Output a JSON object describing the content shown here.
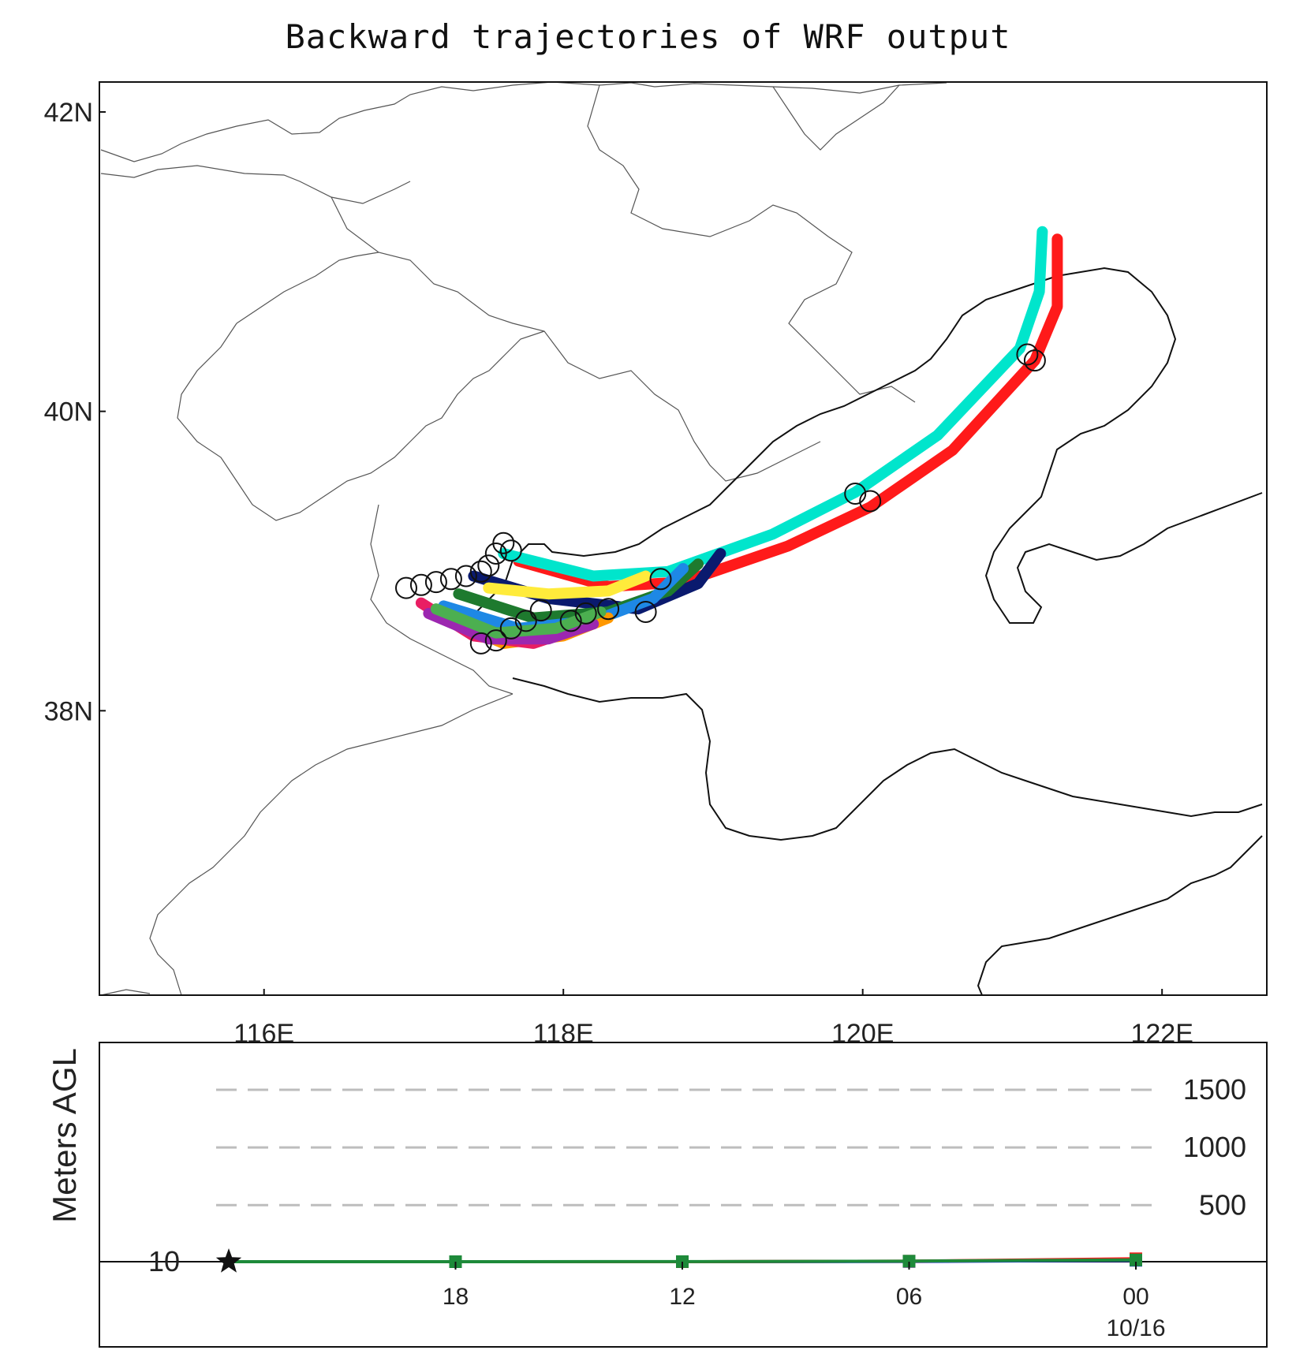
{
  "chart_data": [
    {
      "type": "scatter",
      "subtype": "trajectory-map",
      "title": "Backward trajectories of WRF output",
      "xlabel": "",
      "ylabel": "",
      "x_ticks": [
        116,
        118,
        120,
        122
      ],
      "x_tick_labels": [
        "116E",
        "118E",
        "120E",
        "122E"
      ],
      "y_ticks": [
        38,
        40,
        42
      ],
      "y_tick_labels": [
        "38N",
        "40N",
        "42N"
      ],
      "xlim": [
        114.9,
        122.7
      ],
      "ylim": [
        36.1,
        42.2
      ],
      "grid": false,
      "series": [
        {
          "color": "#ff1a1a",
          "x": [
            117.7,
            118.3,
            118.8,
            119.5,
            120.05,
            120.6,
            121.15,
            121.3,
            121.3
          ],
          "y": [
            39.0,
            38.83,
            38.86,
            39.1,
            39.36,
            39.74,
            40.34,
            40.7,
            41.15
          ]
        },
        {
          "color": "#00e5cc",
          "x": [
            117.6,
            118.2,
            118.7,
            119.4,
            119.95,
            120.5,
            121.05,
            121.18,
            121.2
          ],
          "y": [
            39.05,
            38.9,
            38.93,
            39.18,
            39.46,
            39.84,
            40.42,
            40.8,
            41.2
          ]
        },
        {
          "color": "#0a1a6e",
          "x": [
            117.4,
            117.9,
            118.5,
            118.9,
            119.05
          ],
          "y": [
            38.9,
            38.75,
            38.68,
            38.85,
            39.05
          ]
        },
        {
          "color": "#1e7a2e",
          "x": [
            117.3,
            117.8,
            118.3,
            118.7,
            118.9
          ],
          "y": [
            38.78,
            38.62,
            38.66,
            38.8,
            38.98
          ]
        },
        {
          "color": "#1e88e5",
          "x": [
            117.2,
            117.7,
            118.2,
            118.6,
            118.8
          ],
          "y": [
            38.7,
            38.55,
            38.6,
            38.75,
            38.95
          ]
        },
        {
          "color": "#ff9800",
          "x": [
            117.25,
            117.6,
            118.0,
            118.3
          ],
          "y": [
            38.6,
            38.45,
            38.5,
            38.62
          ]
        },
        {
          "color": "#e91e63",
          "x": [
            117.05,
            117.4,
            117.8,
            118.1
          ],
          "y": [
            38.72,
            38.5,
            38.45,
            38.55
          ]
        },
        {
          "color": "#9c27b0",
          "x": [
            117.1,
            117.5,
            117.9,
            118.2
          ],
          "y": [
            38.65,
            38.48,
            38.48,
            38.58
          ]
        },
        {
          "color": "#4caf50",
          "x": [
            117.15,
            117.55,
            117.95,
            118.25
          ],
          "y": [
            38.68,
            38.52,
            38.55,
            38.66
          ]
        },
        {
          "color": "#ffeb3b",
          "x": [
            117.5,
            117.9,
            118.3,
            118.55
          ],
          "y": [
            38.82,
            38.78,
            38.8,
            38.9
          ]
        }
      ],
      "hour_markers": [
        {
          "x": 116.95,
          "y": 38.82
        },
        {
          "x": 117.05,
          "y": 38.84
        },
        {
          "x": 117.15,
          "y": 38.86
        },
        {
          "x": 117.25,
          "y": 38.88
        },
        {
          "x": 117.35,
          "y": 38.9
        },
        {
          "x": 117.45,
          "y": 38.93
        },
        {
          "x": 117.5,
          "y": 38.97
        },
        {
          "x": 117.55,
          "y": 39.05
        },
        {
          "x": 117.6,
          "y": 39.12
        },
        {
          "x": 117.65,
          "y": 39.07
        },
        {
          "x": 117.45,
          "y": 38.45
        },
        {
          "x": 117.55,
          "y": 38.47
        },
        {
          "x": 117.65,
          "y": 38.55
        },
        {
          "x": 117.75,
          "y": 38.6
        },
        {
          "x": 117.85,
          "y": 38.67
        },
        {
          "x": 118.05,
          "y": 38.6
        },
        {
          "x": 118.15,
          "y": 38.65
        },
        {
          "x": 118.3,
          "y": 38.68
        },
        {
          "x": 118.55,
          "y": 38.66
        },
        {
          "x": 118.65,
          "y": 38.88
        },
        {
          "x": 119.95,
          "y": 39.45
        },
        {
          "x": 120.05,
          "y": 39.4
        },
        {
          "x": 121.1,
          "y": 40.38
        },
        {
          "x": 121.15,
          "y": 40.34
        }
      ]
    },
    {
      "type": "line",
      "ylabel": "Meters AGL",
      "xlabel": "",
      "categories": [
        "18",
        "12",
        "06",
        "00"
      ],
      "date_label": "10/16",
      "y_gridlines": [
        1500,
        1000,
        500
      ],
      "ylim": [
        -60,
        1950
      ],
      "start_label": "10",
      "series": [
        {
          "color": "#1a1aff",
          "x": [
            24,
            18,
            12,
            6,
            0
          ],
          "y": [
            10,
            10,
            10,
            12,
            22
          ]
        },
        {
          "color": "#ff1a1a",
          "x": [
            24,
            18,
            12,
            6,
            0
          ],
          "y": [
            10,
            10,
            10,
            14,
            35
          ]
        },
        {
          "color": "#1e8a3a",
          "x": [
            24,
            18,
            12,
            6,
            0
          ],
          "y": [
            10,
            10,
            11,
            15,
            25
          ]
        }
      ]
    }
  ]
}
